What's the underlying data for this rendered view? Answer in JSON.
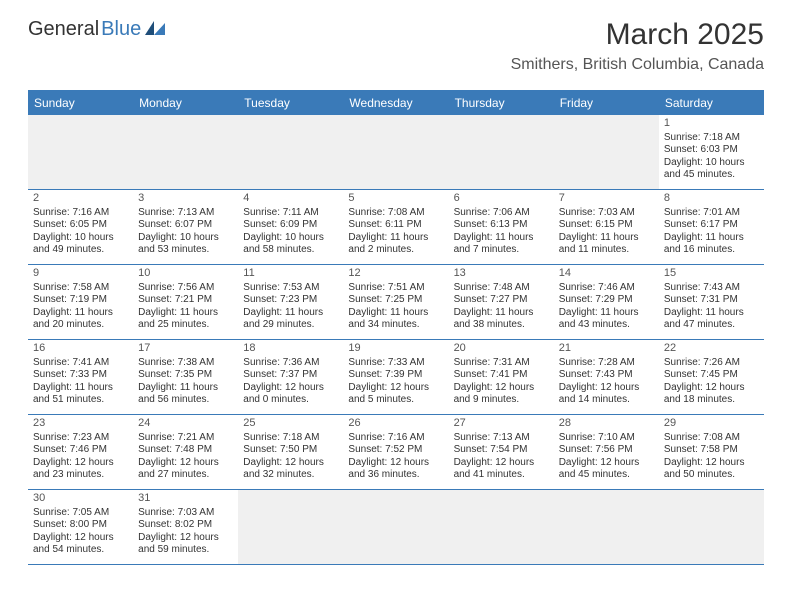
{
  "logo": {
    "general": "General",
    "blue": "Blue"
  },
  "title": "March 2025",
  "location": "Smithers, British Columbia, Canada",
  "colors": {
    "header_bg": "#3a7ab8",
    "header_text": "#ffffff",
    "border": "#3a7ab8",
    "blank_bg": "#f0f0f0",
    "body_text": "#333333"
  },
  "daysOfWeek": [
    "Sunday",
    "Monday",
    "Tuesday",
    "Wednesday",
    "Thursday",
    "Friday",
    "Saturday"
  ],
  "weeks": [
    [
      {
        "blank": true
      },
      {
        "blank": true
      },
      {
        "blank": true
      },
      {
        "blank": true
      },
      {
        "blank": true
      },
      {
        "blank": true
      },
      {
        "n": "1",
        "sunrise": "Sunrise: 7:18 AM",
        "sunset": "Sunset: 6:03 PM",
        "daylight": "Daylight: 10 hours and 45 minutes."
      }
    ],
    [
      {
        "n": "2",
        "sunrise": "Sunrise: 7:16 AM",
        "sunset": "Sunset: 6:05 PM",
        "daylight": "Daylight: 10 hours and 49 minutes."
      },
      {
        "n": "3",
        "sunrise": "Sunrise: 7:13 AM",
        "sunset": "Sunset: 6:07 PM",
        "daylight": "Daylight: 10 hours and 53 minutes."
      },
      {
        "n": "4",
        "sunrise": "Sunrise: 7:11 AM",
        "sunset": "Sunset: 6:09 PM",
        "daylight": "Daylight: 10 hours and 58 minutes."
      },
      {
        "n": "5",
        "sunrise": "Sunrise: 7:08 AM",
        "sunset": "Sunset: 6:11 PM",
        "daylight": "Daylight: 11 hours and 2 minutes."
      },
      {
        "n": "6",
        "sunrise": "Sunrise: 7:06 AM",
        "sunset": "Sunset: 6:13 PM",
        "daylight": "Daylight: 11 hours and 7 minutes."
      },
      {
        "n": "7",
        "sunrise": "Sunrise: 7:03 AM",
        "sunset": "Sunset: 6:15 PM",
        "daylight": "Daylight: 11 hours and 11 minutes."
      },
      {
        "n": "8",
        "sunrise": "Sunrise: 7:01 AM",
        "sunset": "Sunset: 6:17 PM",
        "daylight": "Daylight: 11 hours and 16 minutes."
      }
    ],
    [
      {
        "n": "9",
        "sunrise": "Sunrise: 7:58 AM",
        "sunset": "Sunset: 7:19 PM",
        "daylight": "Daylight: 11 hours and 20 minutes."
      },
      {
        "n": "10",
        "sunrise": "Sunrise: 7:56 AM",
        "sunset": "Sunset: 7:21 PM",
        "daylight": "Daylight: 11 hours and 25 minutes."
      },
      {
        "n": "11",
        "sunrise": "Sunrise: 7:53 AM",
        "sunset": "Sunset: 7:23 PM",
        "daylight": "Daylight: 11 hours and 29 minutes."
      },
      {
        "n": "12",
        "sunrise": "Sunrise: 7:51 AM",
        "sunset": "Sunset: 7:25 PM",
        "daylight": "Daylight: 11 hours and 34 minutes."
      },
      {
        "n": "13",
        "sunrise": "Sunrise: 7:48 AM",
        "sunset": "Sunset: 7:27 PM",
        "daylight": "Daylight: 11 hours and 38 minutes."
      },
      {
        "n": "14",
        "sunrise": "Sunrise: 7:46 AM",
        "sunset": "Sunset: 7:29 PM",
        "daylight": "Daylight: 11 hours and 43 minutes."
      },
      {
        "n": "15",
        "sunrise": "Sunrise: 7:43 AM",
        "sunset": "Sunset: 7:31 PM",
        "daylight": "Daylight: 11 hours and 47 minutes."
      }
    ],
    [
      {
        "n": "16",
        "sunrise": "Sunrise: 7:41 AM",
        "sunset": "Sunset: 7:33 PM",
        "daylight": "Daylight: 11 hours and 51 minutes."
      },
      {
        "n": "17",
        "sunrise": "Sunrise: 7:38 AM",
        "sunset": "Sunset: 7:35 PM",
        "daylight": "Daylight: 11 hours and 56 minutes."
      },
      {
        "n": "18",
        "sunrise": "Sunrise: 7:36 AM",
        "sunset": "Sunset: 7:37 PM",
        "daylight": "Daylight: 12 hours and 0 minutes."
      },
      {
        "n": "19",
        "sunrise": "Sunrise: 7:33 AM",
        "sunset": "Sunset: 7:39 PM",
        "daylight": "Daylight: 12 hours and 5 minutes."
      },
      {
        "n": "20",
        "sunrise": "Sunrise: 7:31 AM",
        "sunset": "Sunset: 7:41 PM",
        "daylight": "Daylight: 12 hours and 9 minutes."
      },
      {
        "n": "21",
        "sunrise": "Sunrise: 7:28 AM",
        "sunset": "Sunset: 7:43 PM",
        "daylight": "Daylight: 12 hours and 14 minutes."
      },
      {
        "n": "22",
        "sunrise": "Sunrise: 7:26 AM",
        "sunset": "Sunset: 7:45 PM",
        "daylight": "Daylight: 12 hours and 18 minutes."
      }
    ],
    [
      {
        "n": "23",
        "sunrise": "Sunrise: 7:23 AM",
        "sunset": "Sunset: 7:46 PM",
        "daylight": "Daylight: 12 hours and 23 minutes."
      },
      {
        "n": "24",
        "sunrise": "Sunrise: 7:21 AM",
        "sunset": "Sunset: 7:48 PM",
        "daylight": "Daylight: 12 hours and 27 minutes."
      },
      {
        "n": "25",
        "sunrise": "Sunrise: 7:18 AM",
        "sunset": "Sunset: 7:50 PM",
        "daylight": "Daylight: 12 hours and 32 minutes."
      },
      {
        "n": "26",
        "sunrise": "Sunrise: 7:16 AM",
        "sunset": "Sunset: 7:52 PM",
        "daylight": "Daylight: 12 hours and 36 minutes."
      },
      {
        "n": "27",
        "sunrise": "Sunrise: 7:13 AM",
        "sunset": "Sunset: 7:54 PM",
        "daylight": "Daylight: 12 hours and 41 minutes."
      },
      {
        "n": "28",
        "sunrise": "Sunrise: 7:10 AM",
        "sunset": "Sunset: 7:56 PM",
        "daylight": "Daylight: 12 hours and 45 minutes."
      },
      {
        "n": "29",
        "sunrise": "Sunrise: 7:08 AM",
        "sunset": "Sunset: 7:58 PM",
        "daylight": "Daylight: 12 hours and 50 minutes."
      }
    ],
    [
      {
        "n": "30",
        "sunrise": "Sunrise: 7:05 AM",
        "sunset": "Sunset: 8:00 PM",
        "daylight": "Daylight: 12 hours and 54 minutes."
      },
      {
        "n": "31",
        "sunrise": "Sunrise: 7:03 AM",
        "sunset": "Sunset: 8:02 PM",
        "daylight": "Daylight: 12 hours and 59 minutes."
      },
      {
        "blank": true
      },
      {
        "blank": true
      },
      {
        "blank": true
      },
      {
        "blank": true
      },
      {
        "blank": true
      }
    ]
  ]
}
